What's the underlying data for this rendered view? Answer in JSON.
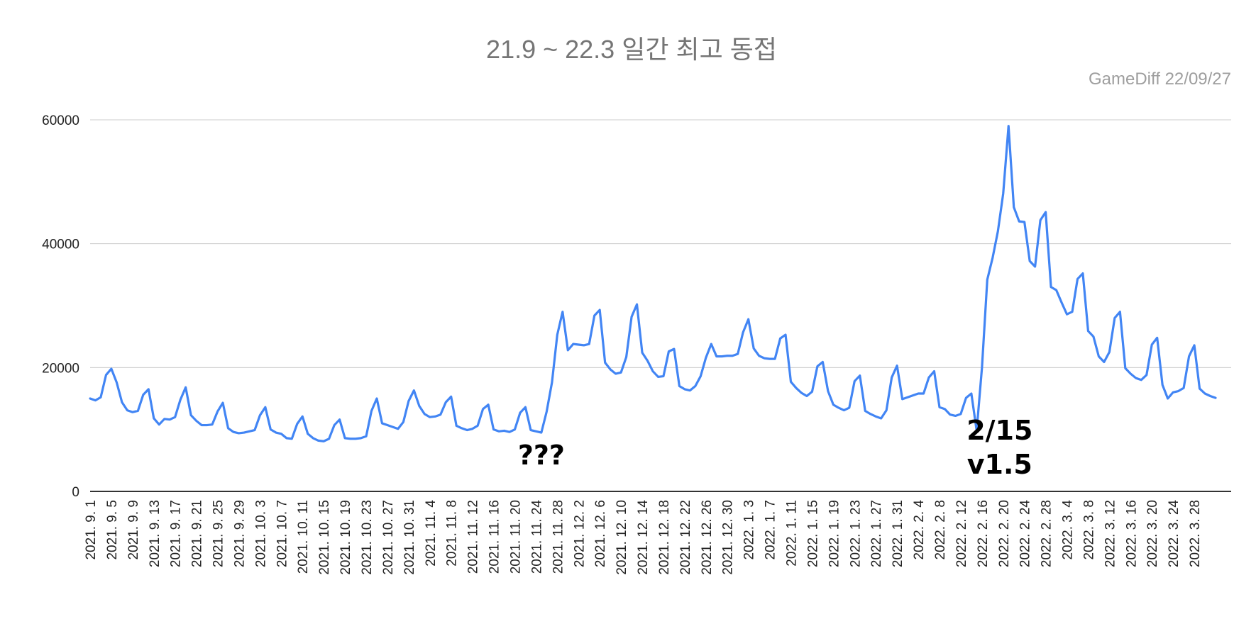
{
  "header": {
    "title": "21.9 ~ 22.3  일간 최고 동접",
    "source": "GameDiff  22/09/27"
  },
  "chart_data": {
    "type": "line",
    "title": "21.9 ~ 22.3  일간 최고 동접",
    "xlabel": "",
    "ylabel": "",
    "ylim": [
      0,
      60000
    ],
    "yticks": [
      0,
      20000,
      40000,
      60000
    ],
    "grid": true,
    "legend": "none",
    "x_start": "2021-09-01",
    "x_end": "2022-03-31",
    "x_tick_labels": [
      "2021. 9. 1",
      "2021. 9. 5",
      "2021. 9. 9",
      "2021. 9. 13",
      "2021. 9. 17",
      "2021. 9. 21",
      "2021. 9. 25",
      "2021. 9. 29",
      "2021. 10. 3",
      "2021. 10. 7",
      "2021. 10. 11",
      "2021. 10. 15",
      "2021. 10. 19",
      "2021. 10. 23",
      "2021. 10. 27",
      "2021. 10. 31",
      "2021. 11. 4",
      "2021. 11. 8",
      "2021. 11. 12",
      "2021. 11. 16",
      "2021. 11. 20",
      "2021. 11. 24",
      "2021. 11. 28",
      "2021. 12. 2",
      "2021. 12. 6",
      "2021. 12. 10",
      "2021. 12. 14",
      "2021. 12. 18",
      "2021. 12. 22",
      "2021. 12. 26",
      "2021. 12. 30",
      "2022. 1. 3",
      "2022. 1. 7",
      "2022. 1. 11",
      "2022. 1. 15",
      "2022. 1. 19",
      "2022. 1. 23",
      "2022. 1. 27",
      "2022. 1. 31",
      "2022. 2. 4",
      "2022. 2. 8",
      "2022. 2. 12",
      "2022. 2. 16",
      "2022. 2. 20",
      "2022. 2. 24",
      "2022. 2. 28",
      "2022. 3. 4",
      "2022. 3. 8",
      "2022. 3. 12",
      "2022. 3. 16",
      "2022. 3. 20",
      "2022. 3. 24",
      "2022. 3. 28"
    ],
    "line_color": "#4285f4",
    "values": [
      15000,
      14700,
      15200,
      18800,
      19800,
      17600,
      14400,
      13100,
      12800,
      13000,
      15600,
      16500,
      11800,
      10800,
      11700,
      11600,
      12000,
      14800,
      16800,
      12300,
      11400,
      10700,
      10700,
      10800,
      12900,
      14300,
      10200,
      9600,
      9400,
      9500,
      9700,
      9900,
      12300,
      13600,
      10000,
      9500,
      9300,
      8600,
      8500,
      10900,
      12100,
      9300,
      8600,
      8200,
      8100,
      8500,
      10700,
      11600,
      8600,
      8500,
      8500,
      8600,
      8900,
      13000,
      15000,
      11000,
      10700,
      10400,
      10100,
      11200,
      14600,
      16300,
      13800,
      12500,
      12000,
      12100,
      12400,
      14400,
      15300,
      10600,
      10200,
      9900,
      10100,
      10600,
      13300,
      14000,
      10000,
      9700,
      9800,
      9600,
      10000,
      12700,
      13600,
      9900,
      9700,
      9500,
      12900,
      17600,
      25300,
      29000,
      22800,
      23800,
      23700,
      23600,
      23800,
      28400,
      29300,
      20800,
      19700,
      19000,
      19200,
      21700,
      28200,
      30200,
      22400,
      21100,
      19400,
      18500,
      18600,
      22600,
      23000,
      17000,
      16500,
      16300,
      17000,
      18600,
      21600,
      23800,
      21800,
      21800,
      21900,
      21900,
      22200,
      25700,
      27800,
      23100,
      21900,
      21500,
      21400,
      21400,
      24700,
      25300,
      17700,
      16700,
      15900,
      15400,
      16100,
      20200,
      20900,
      16200,
      14000,
      13500,
      13100,
      13500,
      17800,
      18700,
      13000,
      12500,
      12100,
      11800,
      13100,
      18400,
      20300,
      14900,
      15200,
      15500,
      15800,
      15800,
      18400,
      19400,
      13600,
      13300,
      12400,
      12200,
      12500,
      15100,
      15800,
      9800,
      20000,
      34200,
      37700,
      42000,
      48100,
      59000,
      45900,
      43600,
      43500,
      37200,
      36300,
      43800,
      45100,
      33000,
      32500,
      30500,
      28600,
      29000,
      34300,
      35200,
      25900,
      25000,
      21800,
      20900,
      22500,
      28000,
      29000,
      19900,
      19000,
      18300,
      18000,
      18800,
      23700,
      24800,
      17200,
      15000,
      16000,
      16200,
      16700,
      21800,
      23600,
      16600,
      15800,
      15400,
      15100
    ],
    "annotations": [
      {
        "x": "2021-11-25",
        "text": "???"
      },
      {
        "x": "2022-02-16",
        "text": "2/15\nv1.5"
      }
    ]
  }
}
